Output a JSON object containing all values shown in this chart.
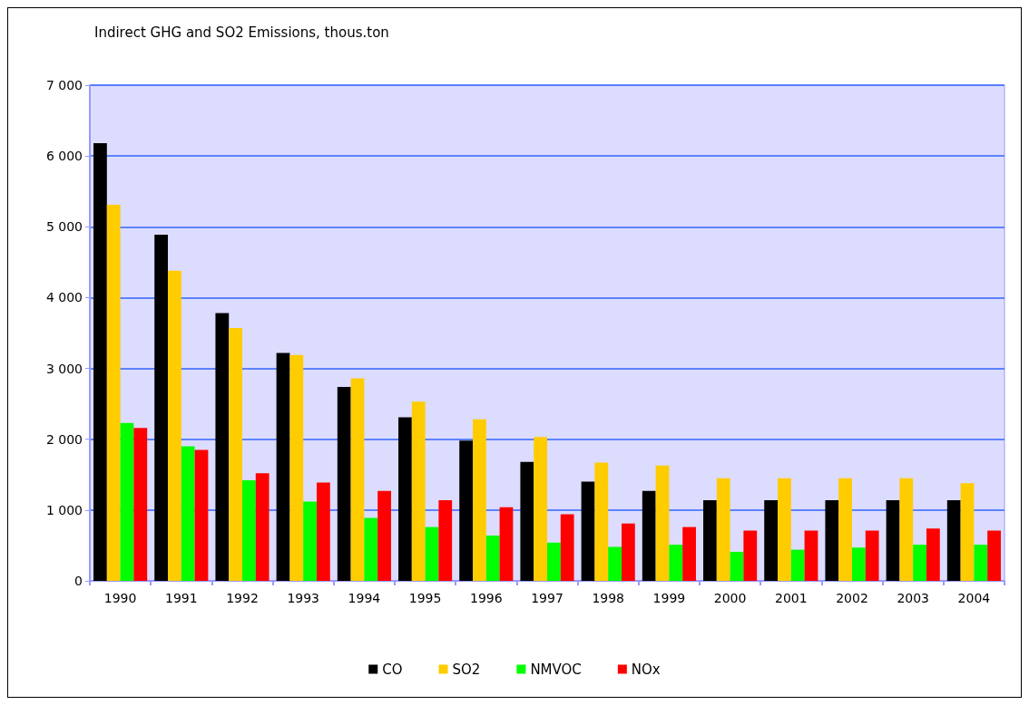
{
  "chart_data": {
    "type": "bar",
    "title": "Indirect GHG and SO2 Emissions, thous.ton",
    "categories": [
      "1990",
      "1991",
      "1992",
      "1993",
      "1994",
      "1995",
      "1996",
      "1997",
      "1998",
      "1999",
      "2000",
      "2001",
      "2002",
      "2003",
      "2004"
    ],
    "series": [
      {
        "name": "CO",
        "color": "#000000",
        "values": [
          6180,
          4890,
          3780,
          3220,
          2740,
          2310,
          1980,
          1680,
          1400,
          1270,
          1140,
          1140,
          1140,
          1140,
          1140
        ]
      },
      {
        "name": "SO2",
        "color": "#ffcc00",
        "values": [
          5310,
          4380,
          3570,
          3190,
          2860,
          2530,
          2280,
          2030,
          1670,
          1630,
          1450,
          1450,
          1450,
          1450,
          1380
        ]
      },
      {
        "name": "NMVOC",
        "color": "#00ff00",
        "values": [
          2230,
          1900,
          1420,
          1120,
          890,
          760,
          640,
          540,
          480,
          510,
          410,
          440,
          470,
          510,
          510
        ]
      },
      {
        "name": "NOx",
        "color": "#ff0000",
        "values": [
          2160,
          1850,
          1520,
          1390,
          1270,
          1140,
          1040,
          940,
          810,
          760,
          710,
          710,
          710,
          740,
          710
        ]
      }
    ],
    "ylim": [
      0,
      7000
    ],
    "yticks": [
      {
        "value": 0,
        "label": "0"
      },
      {
        "value": 1000,
        "label": "1 000"
      },
      {
        "value": 2000,
        "label": "2 000"
      },
      {
        "value": 3000,
        "label": "3 000"
      },
      {
        "value": 4000,
        "label": "4 000"
      },
      {
        "value": 5000,
        "label": "5 000"
      },
      {
        "value": 6000,
        "label": "6 000"
      },
      {
        "value": 7000,
        "label": "7 000"
      }
    ],
    "grid": "y",
    "legend": "bottom"
  }
}
